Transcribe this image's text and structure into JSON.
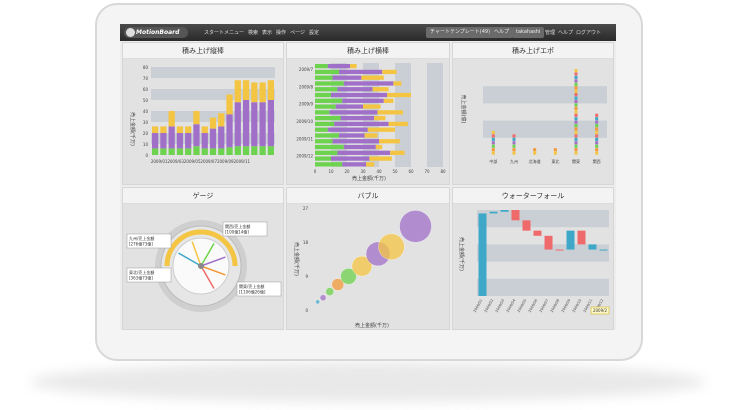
{
  "app": {
    "logo": "MotionBoard",
    "menu": [
      "スタートメニュー",
      "検索",
      "表示",
      "操作",
      "ページ",
      "設定"
    ],
    "template_button": "チャートテンプレート(49)",
    "help_button": "ヘルプ",
    "user": "takahashi",
    "user_menu": [
      "管理",
      "ヘルプ",
      "ログアウト"
    ]
  },
  "colors": {
    "yellow": "#f4c542",
    "purple": "#a070c8",
    "green": "#6dd24e",
    "orange": "#f29a3a",
    "teal": "#3fa8c8",
    "red": "#ef6a6a",
    "gray_band": "#c9cfd4"
  },
  "panels": {
    "p1": {
      "title": "積み上げ縦棒",
      "ylabel": "売上金額(千万)"
    },
    "p2": {
      "title": "積み上げ横棒",
      "xlabel": "売上金額(千万)"
    },
    "p3": {
      "title": "積み上げエポ",
      "ylabel": "売上金額(億)"
    },
    "p4": {
      "title": "ゲージ"
    },
    "p5": {
      "title": "バブル",
      "ylabel": "売上金額(千万)",
      "xlabel": "売上金額(千万)"
    },
    "p6": {
      "title": "ウォーターフォール",
      "ylabel": "売上金額(千万)"
    }
  },
  "chart_data": [
    {
      "type": "bar",
      "title": "積み上げ縦棒",
      "ylabel": "売上金額(千万)",
      "ylim": [
        0,
        80
      ],
      "yticks": [
        0,
        10,
        20,
        30,
        40,
        50,
        60,
        70,
        80
      ],
      "categories": [
        "2009/01",
        "2009/02",
        "2009/03",
        "2009/04",
        "2009/05",
        "2009/06",
        "2009/07",
        "2009/08",
        "2009/09",
        "2009/10",
        "2009/11",
        "2009/12",
        "2010/01",
        "2010/02",
        "2010/03"
      ],
      "xtick_labels": [
        "2009/01",
        "2009/03",
        "2009/05",
        "2009/07",
        "2009/09",
        "2009/11"
      ],
      "series": [
        {
          "values": [
            6,
            6,
            6,
            6,
            6,
            8,
            6,
            6,
            6,
            7,
            8,
            8,
            8,
            8,
            8
          ]
        },
        {
          "values": [
            14,
            14,
            20,
            14,
            14,
            20,
            14,
            18,
            20,
            30,
            40,
            42,
            40,
            40,
            42
          ]
        },
        {
          "values": [
            6,
            6,
            14,
            6,
            6,
            12,
            6,
            10,
            12,
            18,
            20,
            18,
            18,
            18,
            18
          ]
        }
      ]
    },
    {
      "type": "bar",
      "title": "積み上げ横棒",
      "xlabel": "売上金額(千万)",
      "xlim": [
        0,
        80
      ],
      "xticks": [
        0,
        10,
        20,
        30,
        40,
        50,
        60,
        70,
        80
      ],
      "categories": [
        "2009/7",
        "2009/8",
        "2009/9",
        "2009/10",
        "2009/11",
        "2009/12"
      ],
      "ytick_labels": [
        "2009/7",
        "2009/8",
        "2009/9",
        "2009/10",
        "2009/11",
        "2009/12"
      ]
    },
    {
      "type": "scatter",
      "title": "積み上げエポ",
      "ylabel": "売上金額(億)",
      "categories": [
        "中部",
        "九州",
        "北海道",
        "東北",
        "関東",
        "関西"
      ],
      "ylim": [
        0,
        25
      ],
      "yticks": [
        0,
        5,
        10,
        15,
        20,
        25
      ]
    },
    {
      "type": "gauge",
      "title": "ゲージ",
      "callouts": [
        {
          "line1": "九州/売上金額",
          "line2": "[276億73億]"
        },
        {
          "line1": "東北/売上金額",
          "line2": "[363億73億]"
        },
        {
          "line1": "関西/売上金額",
          "line2": "[100億14億]"
        },
        {
          "line1": "関東/売上金額",
          "line2": "[1106億26億]"
        }
      ],
      "scale": [
        "0",
        "10",
        "20",
        "30",
        "40",
        "50",
        "60",
        "70",
        "80",
        "100",
        "130億"
      ]
    },
    {
      "type": "scatter",
      "title": "バブル",
      "xlabel": "売上金額(千万)",
      "ylabel": "売上金額(千万)",
      "yticks": [
        0,
        9,
        18,
        27
      ],
      "ylim": [
        0,
        27
      ]
    },
    {
      "type": "bar",
      "title": "ウォーターフォール",
      "ylabel": "売上金額(千万)",
      "ylim": [
        0,
        50
      ],
      "categories": [
        "2009/01",
        "2009/02",
        "2009/03",
        "2009/04",
        "2009/05",
        "2009/06",
        "2009/07",
        "2009/08",
        "2009/09",
        "2009/10",
        "2009/11",
        "2009/12"
      ],
      "selected_label": "2009/2"
    }
  ]
}
